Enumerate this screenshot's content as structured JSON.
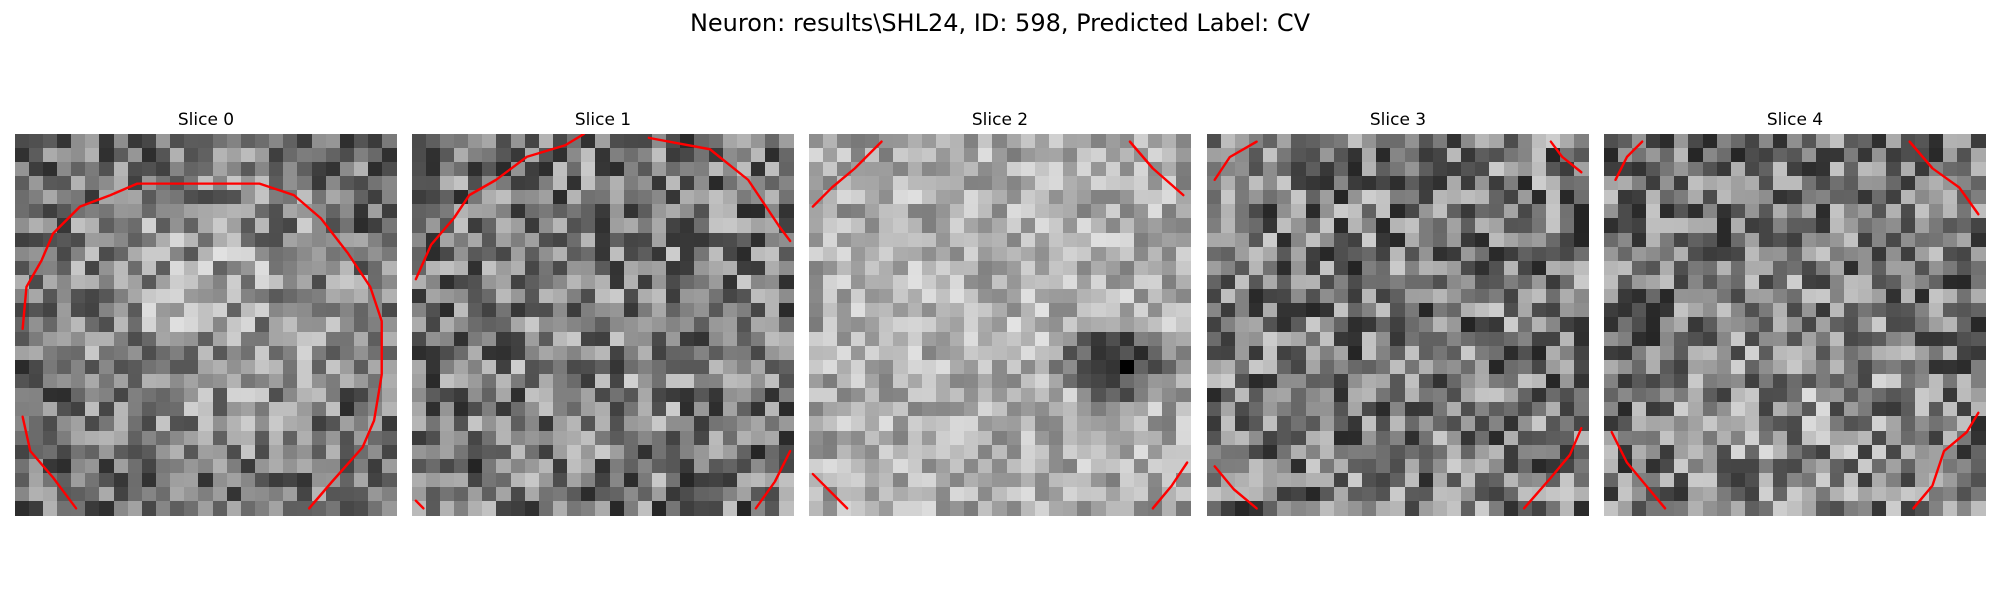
{
  "figure": {
    "title": "Neuron: results\\SHL24, ID: 598, Predicted Label: CV"
  },
  "contour_color": "#ff0000",
  "slices": [
    {
      "title": "Slice 0"
    },
    {
      "title": "Slice 1"
    },
    {
      "title": "Slice 2"
    },
    {
      "title": "Slice 3"
    },
    {
      "title": "Slice 4"
    }
  ]
}
